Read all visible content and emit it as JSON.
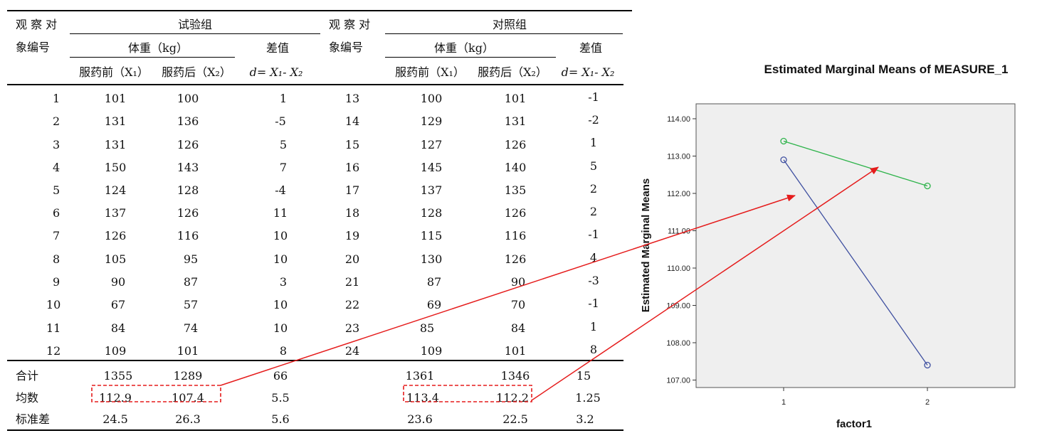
{
  "table": {
    "header": {
      "obs_left": [
        "观 察 对",
        "象编号"
      ],
      "obs_right": [
        "观 察 对",
        "象编号"
      ],
      "trial_group": "试验组",
      "control_group": "对照组",
      "weight_kg": "体重（kg）",
      "diff_label": "差值",
      "before": "服药前（X₁）",
      "after": "服药后（X₂）",
      "diff_formula": "d= X₁- X₂"
    },
    "trial_rows": [
      {
        "id": "1",
        "before": "101",
        "after": "100",
        "diff": "1"
      },
      {
        "id": "2",
        "before": "131",
        "after": "136",
        "diff": "-5"
      },
      {
        "id": "3",
        "before": "131",
        "after": "126",
        "diff": "5"
      },
      {
        "id": "4",
        "before": "150",
        "after": "143",
        "diff": "7"
      },
      {
        "id": "5",
        "before": "124",
        "after": "128",
        "diff": "-4"
      },
      {
        "id": "6",
        "before": "137",
        "after": "126",
        "diff": "11"
      },
      {
        "id": "7",
        "before": "126",
        "after": "116",
        "diff": "10"
      },
      {
        "id": "8",
        "before": "105",
        "after": "95",
        "diff": "10"
      },
      {
        "id": "9",
        "before": "90",
        "after": "87",
        "diff": "3"
      },
      {
        "id": "10",
        "before": "67",
        "after": "57",
        "diff": "10"
      },
      {
        "id": "11",
        "before": "84",
        "after": "74",
        "diff": "10"
      },
      {
        "id": "12",
        "before": "109",
        "after": "101",
        "diff": "8"
      }
    ],
    "control_rows": [
      {
        "id": "13",
        "before": "100",
        "after": "101",
        "diff": "-1"
      },
      {
        "id": "14",
        "before": "129",
        "after": "131",
        "diff": "-2"
      },
      {
        "id": "15",
        "before": "127",
        "after": "126",
        "diff": "1"
      },
      {
        "id": "16",
        "before": "145",
        "after": "140",
        "diff": "5"
      },
      {
        "id": "17",
        "before": "137",
        "after": "135",
        "diff": "2"
      },
      {
        "id": "18",
        "before": "128",
        "after": "126",
        "diff": "2"
      },
      {
        "id": "19",
        "before": "115",
        "after": "116",
        "diff": "-1"
      },
      {
        "id": "20",
        "before": "130",
        "after": "126",
        "diff": "4"
      },
      {
        "id": "21",
        "before": "87",
        "after": "90",
        "diff": "-3"
      },
      {
        "id": "22",
        "before": "69",
        "after": "70",
        "diff": "-1"
      },
      {
        "id": "23",
        "before": "85",
        "after": "84",
        "diff": "1"
      },
      {
        "id": "24",
        "before": "109",
        "after": "101",
        "diff": "8"
      }
    ],
    "summary": [
      {
        "label": "合计",
        "t_before": "1355",
        "t_after": "1289",
        "t_diff": "66",
        "c_before": "1361",
        "c_after": "1346",
        "c_diff": "15"
      },
      {
        "label": "均数",
        "t_before": "112.9",
        "t_after": "107.4",
        "t_diff": "5.5",
        "c_before": "113.4",
        "c_after": "112.2",
        "c_diff": "1.25"
      },
      {
        "label": "标准差",
        "t_before": "24.5",
        "t_after": "26.3",
        "t_diff": "5.6",
        "c_before": "23.6",
        "c_after": "22.5",
        "c_diff": "3.2"
      }
    ]
  },
  "chart_data": {
    "type": "line",
    "title": "Estimated Marginal Means of MEASURE_1",
    "xlabel": "factor1",
    "ylabel": "Estimated Marginal Means",
    "categories": [
      "1",
      "2"
    ],
    "series": [
      {
        "values": [
          112.9,
          107.4
        ],
        "color": "#3e4fa0"
      },
      {
        "values": [
          113.4,
          112.2
        ],
        "color": "#2db34a"
      }
    ],
    "ylim": [
      106.8,
      114.4
    ],
    "yticks": [
      "107.00",
      "108.00",
      "109.00",
      "110.00",
      "111.00",
      "112.00",
      "113.00",
      "114.00"
    ],
    "grid": false,
    "plot_background": "#efefef"
  },
  "colors": {
    "annotation": "#e51c1c"
  }
}
